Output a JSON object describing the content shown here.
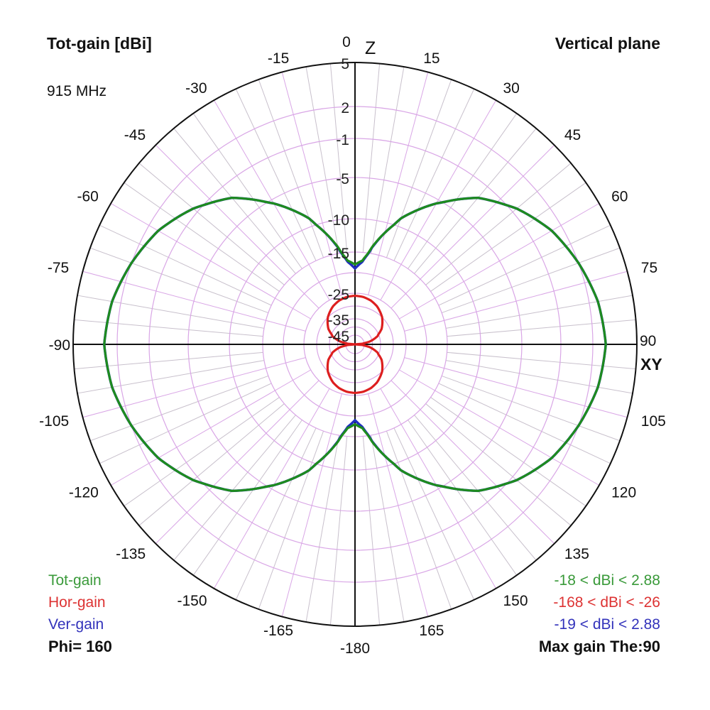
{
  "header": {
    "title": "Tot-gain [dBi]",
    "plane": "Vertical plane",
    "frequency": "915 MHz"
  },
  "axes": {
    "top_label": "Z",
    "right_label": "XY"
  },
  "legend": {
    "items": [
      {
        "name": "Tot-gain",
        "color": "#2e9a2e",
        "range": "-18 < dBi < 2.88"
      },
      {
        "name": "Hor-gain",
        "color": "#dd2222",
        "range": "-168 < dBi < -26"
      },
      {
        "name": "Ver-gain",
        "color": "#2222bb",
        "range": "-19 < dBi < 2.88"
      }
    ],
    "phi": "Phi= 160",
    "max_gain": "Max gain The:90"
  },
  "colors": {
    "grid": "#d9a6e6",
    "grid_minor": "#c8c0cc",
    "axis": "#111111",
    "tot": "#1e8c1e",
    "hor": "#dd1f1f",
    "ver": "#1f2fbf"
  },
  "chart_data": {
    "type": "polar",
    "title": "Tot-gain [dBi]",
    "subtitle": "Vertical plane, 915 MHz, Phi= 160",
    "angle_unit": "degrees (theta, 0 = Z up, clockwise)",
    "angle_tick_labels": [
      "0",
      "15",
      "30",
      "45",
      "60",
      "75",
      "90",
      "105",
      "120",
      "135",
      "150",
      "165",
      "-180",
      "-165",
      "-150",
      "-135",
      "-120",
      "-105",
      "-90",
      "-75",
      "-60",
      "-45",
      "-30",
      "-15"
    ],
    "radial_tick_labels": [
      "5",
      "2",
      "-1",
      "-5",
      "-10",
      "-15",
      "-25",
      "-35",
      "-45"
    ],
    "radial_range_dbi": [
      -45,
      5
    ],
    "series": [
      {
        "name": "Tot-gain",
        "range": "-18 < dBi < 2.88",
        "theta": [
          0,
          5,
          10,
          15,
          20,
          30,
          40,
          50,
          60,
          70,
          80,
          90,
          100,
          110,
          120,
          130,
          140,
          150,
          160,
          165,
          170,
          175,
          180
        ],
        "dbi": [
          -18,
          -17,
          -14,
          -11.5,
          -9,
          -5.5,
          -2.5,
          -0.5,
          1,
          2,
          2.6,
          2.88,
          2.6,
          2,
          1,
          -0.5,
          -2.5,
          -5.5,
          -9,
          -11.5,
          -14,
          -17,
          -18
        ]
      },
      {
        "name": "Hor-gain",
        "range": "-168 < dBi < -26",
        "theta": [
          0,
          10,
          20,
          30,
          45,
          60,
          70,
          80,
          85,
          90,
          95,
          100,
          110,
          120,
          135,
          150,
          160,
          170,
          180
        ],
        "dbi": [
          -26,
          -26.2,
          -26.8,
          -27.8,
          -30,
          -33,
          -36,
          -42,
          -48,
          -168,
          -48,
          -42,
          -36,
          -33,
          -30,
          -27.8,
          -26.8,
          -26.2,
          -26
        ]
      },
      {
        "name": "Ver-gain",
        "range": "-19 < dBi < 2.88",
        "theta": [
          0,
          5,
          10,
          15,
          20,
          30,
          40,
          50,
          60,
          70,
          80,
          90,
          100,
          110,
          120,
          130,
          140,
          150,
          160,
          165,
          170,
          175,
          180
        ],
        "dbi": [
          -19,
          -17.3,
          -14.1,
          -11.5,
          -9,
          -5.5,
          -2.5,
          -0.5,
          1,
          2,
          2.6,
          2.88,
          2.6,
          2,
          1,
          -0.5,
          -2.5,
          -5.5,
          -9,
          -11.5,
          -14.1,
          -17.3,
          -19
        ]
      }
    ],
    "max_gain_theta": 90,
    "phi": 160
  }
}
